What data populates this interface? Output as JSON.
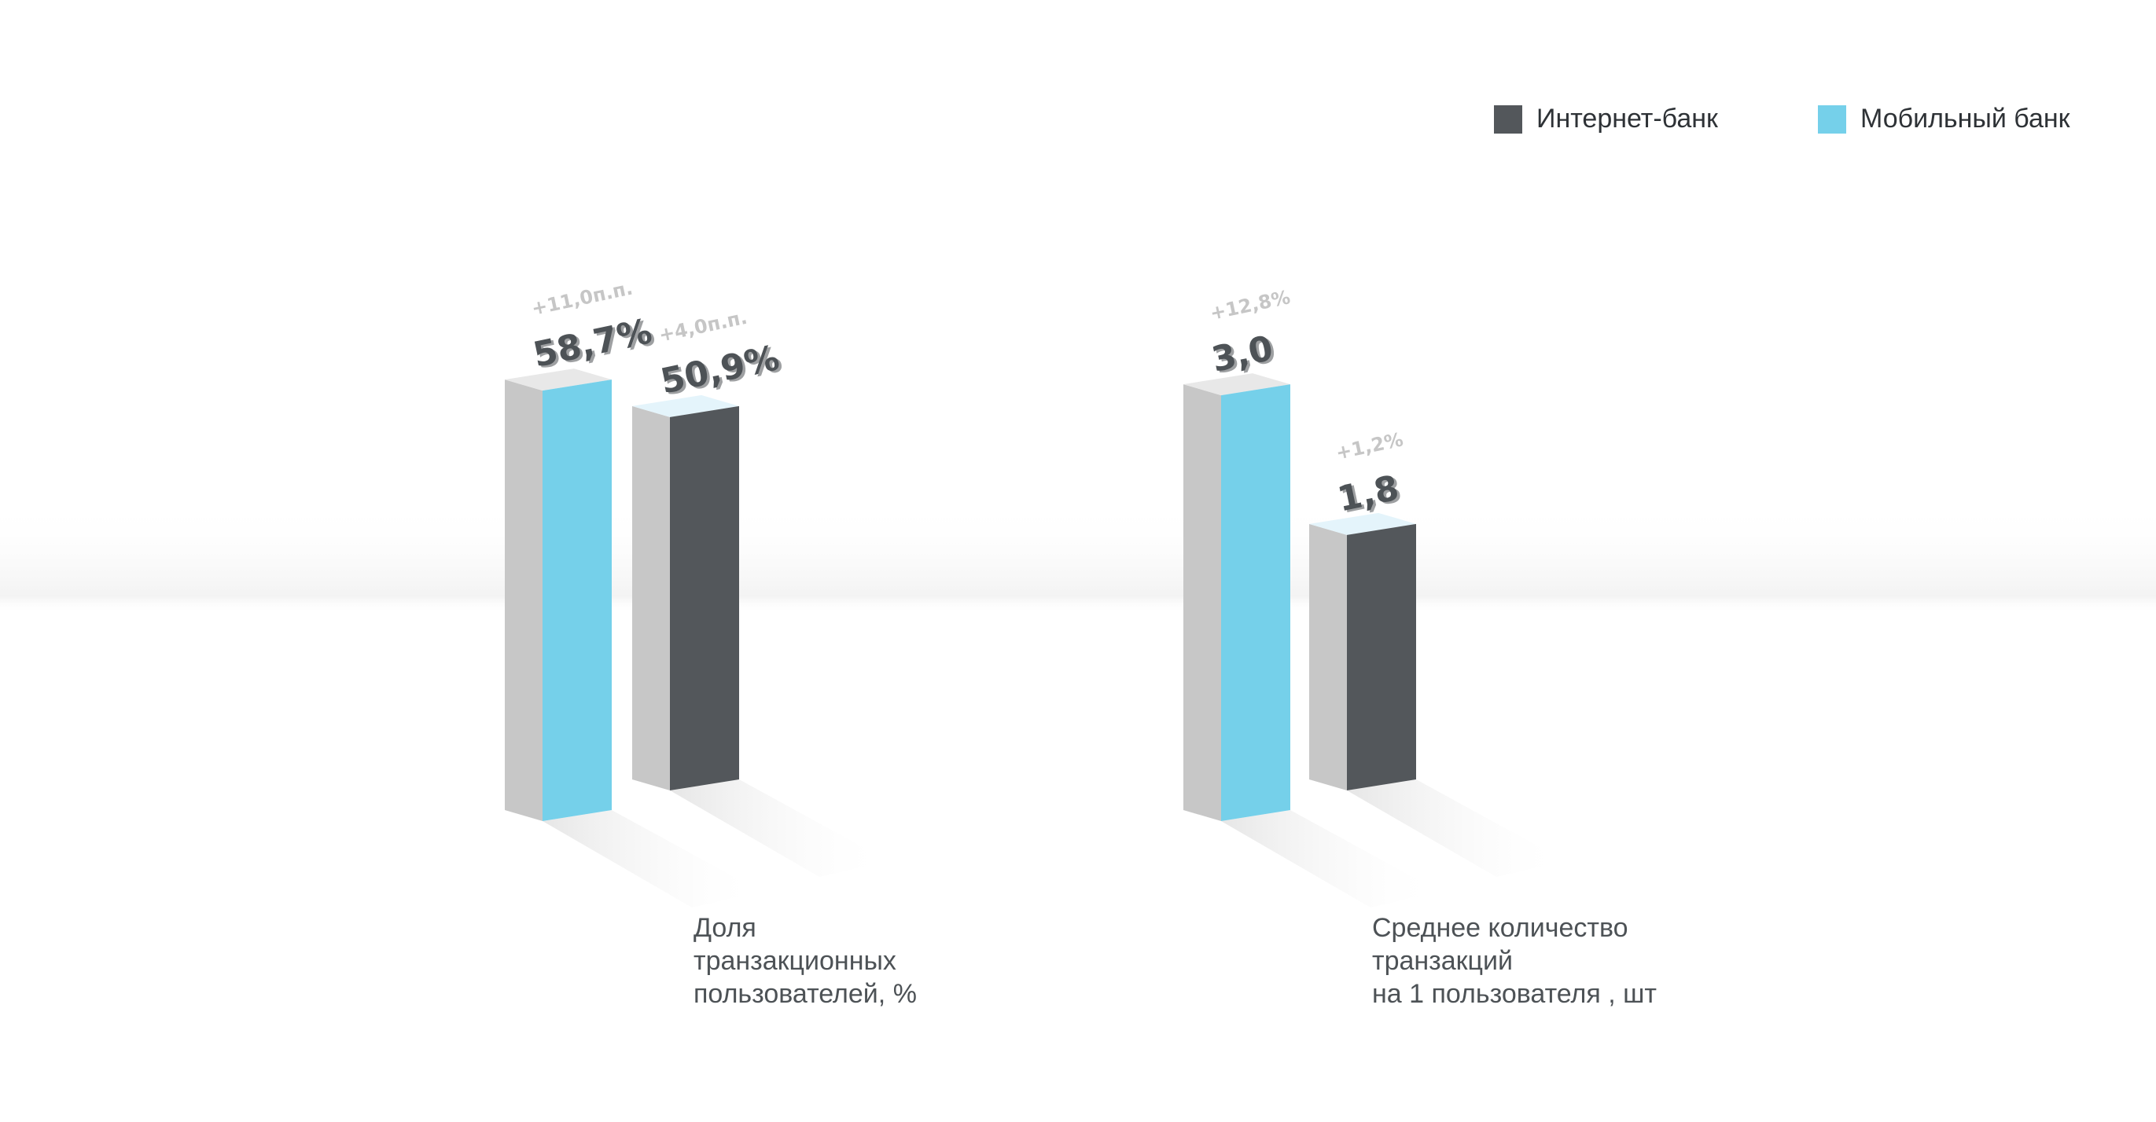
{
  "legend": {
    "internet_label": "Интернет-банк",
    "mobile_label": "Мобильный банк"
  },
  "colors": {
    "internet": "#53575b",
    "mobile": "#75d0ea",
    "bar_side": "#c7c7c7",
    "bar_top": "#e8e8e8",
    "internet_top": "#e4f4fb",
    "value_text": "#4d5256",
    "change_text": "#c6c6c6"
  },
  "chart_data": [
    {
      "type": "bar",
      "title": "",
      "categories": [
        "Мобильный банк",
        "Интернет-банк"
      ],
      "values": [
        58.7,
        50.9
      ],
      "value_labels": [
        "58,7%",
        "50,9%"
      ],
      "change_labels": [
        "+11,0п.п.",
        "+4,0п.п."
      ],
      "label_lines": [
        "Доля",
        "транзакционных",
        "пользователей, %"
      ],
      "ylim": [
        0,
        60
      ],
      "grid": false,
      "legend": "top-right"
    },
    {
      "type": "bar",
      "title": "",
      "categories": [
        "Мобильный банк",
        "Интернет-банк"
      ],
      "values": [
        3.0,
        1.8
      ],
      "value_labels": [
        "3,0",
        "1,8"
      ],
      "change_labels": [
        "+12,8%",
        "+1,2%"
      ],
      "label_lines": [
        "Среднее количество",
        "транзакций",
        "на 1 пользователя , шт"
      ],
      "ylim": [
        0,
        3.1
      ],
      "grid": false,
      "legend": "top-right"
    }
  ]
}
